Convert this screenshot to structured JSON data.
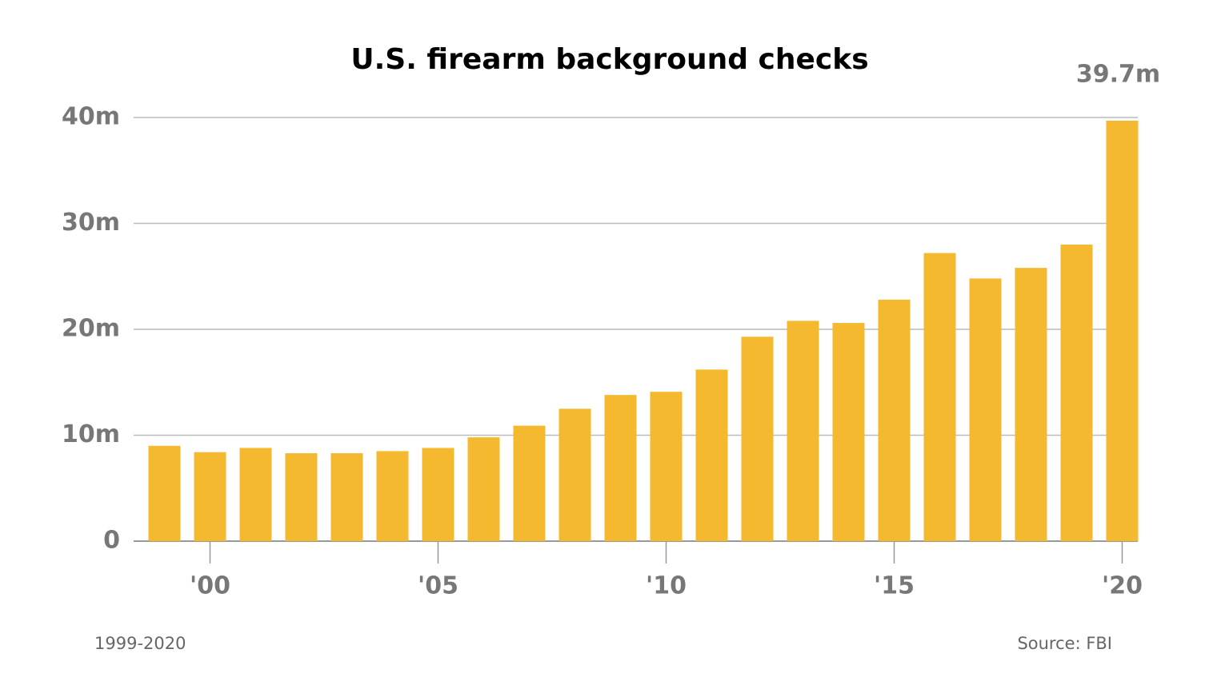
{
  "chart_data": {
    "type": "bar",
    "title": "U.S. firearm background checks",
    "subtitle": "1999-2020",
    "source": "Source: FBI",
    "categories": [
      null,
      "'00",
      null,
      null,
      null,
      null,
      "'05",
      null,
      null,
      null,
      null,
      "'10",
      null,
      null,
      null,
      null,
      "'15",
      null,
      null,
      null,
      null,
      "'20"
    ],
    "values": [
      9.0,
      8.4,
      8.8,
      8.3,
      8.3,
      8.5,
      8.8,
      9.8,
      10.9,
      12.5,
      13.8,
      14.1,
      16.2,
      19.3,
      20.8,
      20.6,
      22.8,
      27.2,
      24.8,
      25.8,
      28.0,
      39.7
    ],
    "value_labels": [
      null,
      null,
      null,
      null,
      null,
      null,
      null,
      null,
      null,
      null,
      null,
      null,
      null,
      null,
      null,
      null,
      null,
      null,
      null,
      null,
      null,
      "39.7m"
    ],
    "color": "#f4b92e",
    "ylim": [
      0,
      40
    ],
    "yticks": [
      0,
      {
        "value": 10,
        "label": "10m"
      },
      {
        "value": 20,
        "label": "20m"
      },
      {
        "value": 30,
        "label": "30m"
      },
      {
        "value": 40,
        "label": "40m"
      }
    ],
    "grid": true
  }
}
